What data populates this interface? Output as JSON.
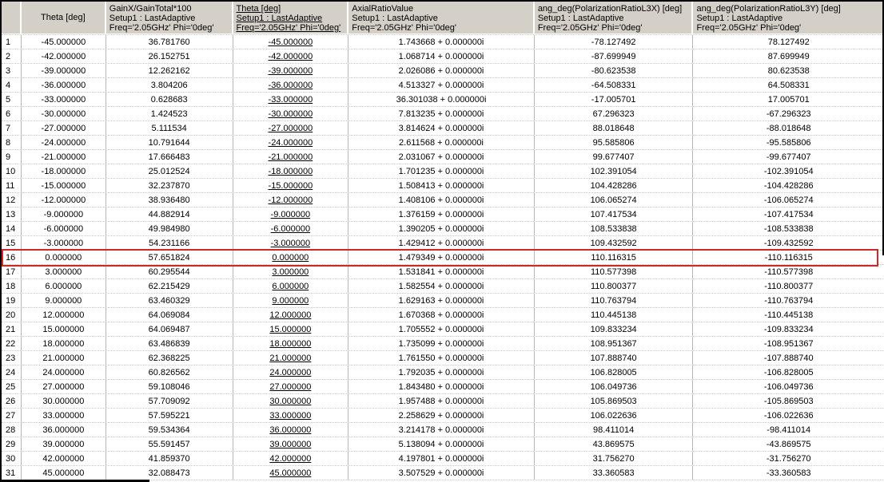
{
  "colors": {
    "header_bg": "#d4d0c8",
    "grid_vertical": "#b8b8b8",
    "grid_horizontal": "#c9c9c9",
    "highlight_border": "#cc2929",
    "window_border": "#000000"
  },
  "table": {
    "columns": [
      {
        "key": "index",
        "label": "",
        "sub": [],
        "underline": false,
        "center_v": false
      },
      {
        "key": "theta",
        "label": "Theta [deg]",
        "sub": [],
        "underline": false,
        "center_v": true
      },
      {
        "key": "gain",
        "label": "GainX/GainTotal*100",
        "sub": [
          "Setup1 : LastAdaptive",
          "Freq='2.05GHz' Phi='0deg'"
        ],
        "underline": false,
        "center_v": false
      },
      {
        "key": "theta_sweep",
        "label": "Theta [deg]",
        "sub": [
          "Setup1 : LastAdaptive",
          "Freq='2.05GHz' Phi='0deg'"
        ],
        "underline": true,
        "center_v": false
      },
      {
        "key": "axial_ratio",
        "label": "AxialRatioValue",
        "sub": [
          "Setup1 : LastAdaptive",
          "Freq='2.05GHz' Phi='0deg'"
        ],
        "underline": false,
        "center_v": false
      },
      {
        "key": "ang_l3x",
        "label": "ang_deg(PolarizationRatioL3X) [deg]",
        "sub": [
          "Setup1 : LastAdaptive",
          "Freq='2.05GHz' Phi='0deg'"
        ],
        "underline": false,
        "center_v": false
      },
      {
        "key": "ang_l3y",
        "label": "ang_deg(PolarizationRatioL3Y) [deg]",
        "sub": [
          "Setup1 : LastAdaptive",
          "Freq='2.05GHz' Phi='0deg'"
        ],
        "underline": false,
        "center_v": false
      }
    ],
    "rows": [
      [
        "1",
        "-45.000000",
        "36.781760",
        "-45.000000",
        "1.743668 + 0.000000i",
        "-78.127492",
        "78.127492"
      ],
      [
        "2",
        "-42.000000",
        "26.152751",
        "-42.000000",
        "1.068714 + 0.000000i",
        "-87.699949",
        "87.699949"
      ],
      [
        "3",
        "-39.000000",
        "12.262162",
        "-39.000000",
        "2.026086 + 0.000000i",
        "-80.623538",
        "80.623538"
      ],
      [
        "4",
        "-36.000000",
        "3.804206",
        "-36.000000",
        "4.513327 + 0.000000i",
        "-64.508331",
        "64.508331"
      ],
      [
        "5",
        "-33.000000",
        "0.628683",
        "-33.000000",
        "36.301038 + 0.000000i",
        "-17.005701",
        "17.005701"
      ],
      [
        "6",
        "-30.000000",
        "1.424523",
        "-30.000000",
        "7.813235 + 0.000000i",
        "67.296323",
        "-67.296323"
      ],
      [
        "7",
        "-27.000000",
        "5.111534",
        "-27.000000",
        "3.814624 + 0.000000i",
        "88.018648",
        "-88.018648"
      ],
      [
        "8",
        "-24.000000",
        "10.791644",
        "-24.000000",
        "2.611568 + 0.000000i",
        "95.585806",
        "-95.585806"
      ],
      [
        "9",
        "-21.000000",
        "17.666483",
        "-21.000000",
        "2.031067 + 0.000000i",
        "99.677407",
        "-99.677407"
      ],
      [
        "10",
        "-18.000000",
        "25.012524",
        "-18.000000",
        "1.701235 + 0.000000i",
        "102.391054",
        "-102.391054"
      ],
      [
        "11",
        "-15.000000",
        "32.237870",
        "-15.000000",
        "1.508413 + 0.000000i",
        "104.428286",
        "-104.428286"
      ],
      [
        "12",
        "-12.000000",
        "38.936480",
        "-12.000000",
        "1.408106 + 0.000000i",
        "106.065274",
        "-106.065274"
      ],
      [
        "13",
        "-9.000000",
        "44.882914",
        "-9.000000",
        "1.376159 + 0.000000i",
        "107.417534",
        "-107.417534"
      ],
      [
        "14",
        "-6.000000",
        "49.984980",
        "-6.000000",
        "1.390205 + 0.000000i",
        "108.533838",
        "-108.533838"
      ],
      [
        "15",
        "-3.000000",
        "54.231166",
        "-3.000000",
        "1.429412 + 0.000000i",
        "109.432592",
        "-109.432592"
      ],
      [
        "16",
        "0.000000",
        "57.651824",
        "0.000000",
        "1.479349 + 0.000000i",
        "110.116315",
        "-110.116315"
      ],
      [
        "17",
        "3.000000",
        "60.295544",
        "3.000000",
        "1.531841 + 0.000000i",
        "110.577398",
        "-110.577398"
      ],
      [
        "18",
        "6.000000",
        "62.215429",
        "6.000000",
        "1.582554 + 0.000000i",
        "110.800377",
        "-110.800377"
      ],
      [
        "19",
        "9.000000",
        "63.460329",
        "9.000000",
        "1.629163 + 0.000000i",
        "110.763794",
        "-110.763794"
      ],
      [
        "20",
        "12.000000",
        "64.069084",
        "12.000000",
        "1.670368 + 0.000000i",
        "110.445138",
        "-110.445138"
      ],
      [
        "21",
        "15.000000",
        "64.069487",
        "15.000000",
        "1.705552 + 0.000000i",
        "109.833234",
        "-109.833234"
      ],
      [
        "22",
        "18.000000",
        "63.486839",
        "18.000000",
        "1.735099 + 0.000000i",
        "108.951367",
        "-108.951367"
      ],
      [
        "23",
        "21.000000",
        "62.368225",
        "21.000000",
        "1.761550 + 0.000000i",
        "107.888740",
        "-107.888740"
      ],
      [
        "24",
        "24.000000",
        "60.826562",
        "24.000000",
        "1.792035 + 0.000000i",
        "106.828005",
        "-106.828005"
      ],
      [
        "25",
        "27.000000",
        "59.108046",
        "27.000000",
        "1.843480 + 0.000000i",
        "106.049736",
        "-106.049736"
      ],
      [
        "26",
        "30.000000",
        "57.709092",
        "30.000000",
        "1.957488 + 0.000000i",
        "105.869503",
        "-105.869503"
      ],
      [
        "27",
        "33.000000",
        "57.595221",
        "33.000000",
        "2.258629 + 0.000000i",
        "106.022636",
        "-106.022636"
      ],
      [
        "28",
        "36.000000",
        "59.534364",
        "36.000000",
        "3.214178 + 0.000000i",
        "98.411014",
        "-98.411014"
      ],
      [
        "29",
        "39.000000",
        "55.591457",
        "39.000000",
        "5.138094 + 0.000000i",
        "43.869575",
        "-43.869575"
      ],
      [
        "30",
        "42.000000",
        "41.859370",
        "42.000000",
        "4.197801 + 0.000000i",
        "31.756270",
        "-31.756270"
      ],
      [
        "31",
        "45.000000",
        "32.088473",
        "45.000000",
        "3.507529 + 0.000000i",
        "33.360583",
        "-33.360583"
      ]
    ],
    "highlight": {
      "row_number": 16
    }
  }
}
